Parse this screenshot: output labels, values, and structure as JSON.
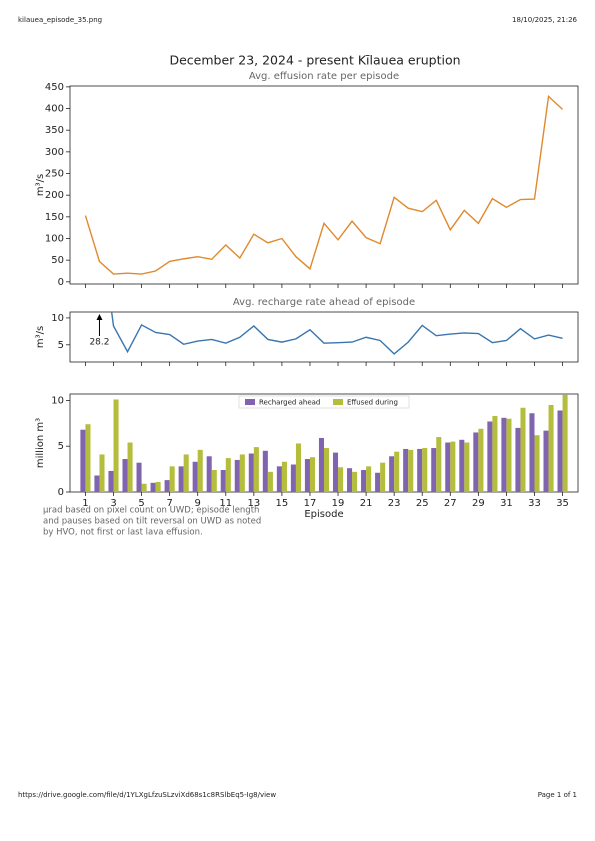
{
  "header": {
    "left": "kilauea_episode_35.png",
    "right": "18/10/2025, 21:26"
  },
  "footer": {
    "left": "https://drive.google.com/file/d/1YLXgLfzuSLzviXd68s1c8RSlbEq5-Ig8/view",
    "right": "Page 1 of 1"
  },
  "chart_data": [
    {
      "type": "line",
      "title": "December 23, 2024 - present Kīlauea eruption",
      "subtitle": "Avg. effusion rate per episode",
      "ylabel": "m³/s",
      "x": [
        1,
        2,
        3,
        4,
        5,
        6,
        7,
        8,
        9,
        10,
        11,
        12,
        13,
        14,
        15,
        16,
        17,
        18,
        19,
        20,
        21,
        22,
        23,
        24,
        25,
        26,
        27,
        28,
        29,
        30,
        31,
        32,
        33,
        34,
        35
      ],
      "series": [
        {
          "name": "Avg. effusion rate",
          "color": "#e0892d",
          "values": [
            153,
            47,
            18,
            20,
            18,
            25,
            47,
            53,
            58,
            52,
            85,
            55,
            110,
            90,
            100,
            58,
            30,
            135,
            97,
            140,
            102,
            88,
            195,
            170,
            162,
            188,
            120,
            165,
            135,
            192,
            172,
            190,
            191,
            428,
            398
          ]
        }
      ],
      "xlim": [
        -0.1,
        36.1
      ],
      "ylim": [
        -5,
        452
      ],
      "yticks": [
        0,
        50,
        100,
        150,
        200,
        250,
        300,
        350,
        400,
        450
      ]
    },
    {
      "type": "line",
      "subtitle": "Avg. recharge rate ahead of episode",
      "ylabel": "m³/s",
      "x": [
        1,
        2,
        3,
        4,
        5,
        6,
        7,
        8,
        9,
        10,
        11,
        12,
        13,
        14,
        15,
        16,
        17,
        18,
        19,
        20,
        21,
        22,
        23,
        24,
        25,
        26,
        27,
        28,
        29,
        30,
        31,
        32,
        33,
        34,
        35
      ],
      "series": [
        {
          "name": "Avg. recharge rate",
          "color": "#3a75b0",
          "values": [
            null,
            28.2,
            8.5,
            3.7,
            8.7,
            7.3,
            6.9,
            5.1,
            5.7,
            6.0,
            5.3,
            6.4,
            8.5,
            6.0,
            5.5,
            6.1,
            7.8,
            5.3,
            5.4,
            5.5,
            6.4,
            5.8,
            3.3,
            5.5,
            8.6,
            6.7,
            7.0,
            7.2,
            7.1,
            5.4,
            5.8,
            8.0,
            6.1,
            6.8,
            6.2
          ],
          "value_labels": [
            null,
            "28.2",
            null,
            null,
            null,
            null,
            null,
            null,
            null,
            null,
            null,
            null,
            null,
            null,
            null,
            null,
            null,
            null,
            null,
            null,
            null,
            null,
            null,
            null,
            null,
            null,
            null,
            null,
            null,
            null,
            null,
            null,
            null,
            null,
            null
          ]
        }
      ],
      "xlim": [
        -0.1,
        36.1
      ],
      "ylim": [
        1.8,
        11.1
      ],
      "yticks": [
        5,
        10
      ]
    },
    {
      "type": "bar",
      "ylabel": "million m³",
      "xlabel": "Episode",
      "legend": "upper center",
      "x": [
        1,
        2,
        3,
        4,
        5,
        6,
        7,
        8,
        9,
        10,
        11,
        12,
        13,
        14,
        15,
        16,
        17,
        18,
        19,
        20,
        21,
        22,
        23,
        24,
        25,
        26,
        27,
        28,
        29,
        30,
        31,
        32,
        33,
        34,
        35
      ],
      "series": [
        {
          "name": "Recharged ahead",
          "color": "#8064b0",
          "values": [
            6.8,
            1.8,
            2.3,
            3.6,
            3.2,
            1.0,
            1.3,
            2.8,
            3.3,
            3.9,
            2.4,
            3.5,
            4.2,
            4.5,
            2.8,
            3.0,
            3.6,
            5.9,
            4.3,
            2.6,
            2.4,
            2.1,
            3.9,
            4.7,
            4.7,
            4.8,
            5.4,
            5.7,
            6.5,
            7.7,
            8.1,
            7.0,
            8.6,
            6.7,
            8.9
          ]
        },
        {
          "name": "Effused during",
          "color": "#b5bd3c",
          "values": [
            7.4,
            4.1,
            10.1,
            5.4,
            0.9,
            1.1,
            2.8,
            4.1,
            4.6,
            2.4,
            3.7,
            4.1,
            4.9,
            2.2,
            3.3,
            5.3,
            3.8,
            4.8,
            2.7,
            2.2,
            2.8,
            3.2,
            4.4,
            4.6,
            4.8,
            6.0,
            5.5,
            5.4,
            6.9,
            8.3,
            8.0,
            9.2,
            6.2,
            9.5,
            10.6
          ]
        }
      ],
      "xlim": [
        -0.1,
        36.1
      ],
      "ylim": [
        0,
        10.7
      ],
      "yticks": [
        0,
        5,
        10
      ],
      "xticks": [
        1,
        3,
        5,
        7,
        9,
        11,
        13,
        15,
        17,
        19,
        21,
        23,
        25,
        27,
        29,
        31,
        33,
        35
      ],
      "note": [
        "µrad based on pixel count on UWD; episode length",
        "and pauses based on tilt reversal on UWD as noted",
        "by HVO, not first or last lava effusion."
      ]
    }
  ]
}
